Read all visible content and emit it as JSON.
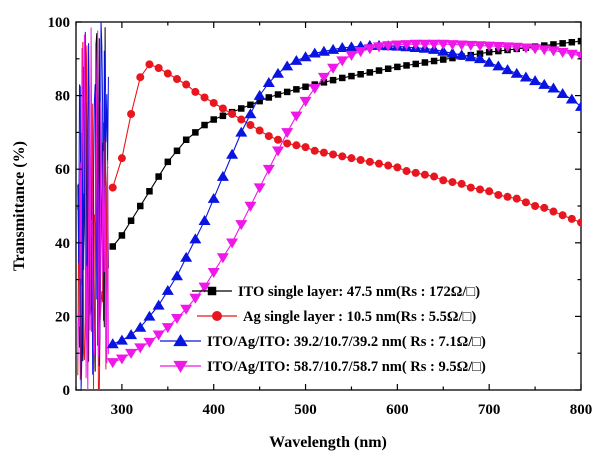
{
  "chart_data": {
    "type": "line",
    "xlabel": "Wavelength (nm)",
    "ylabel": "Transmittance (%)",
    "xlim": [
      250,
      800
    ],
    "ylim": [
      0,
      100
    ],
    "xticks": [
      300,
      400,
      500,
      600,
      700,
      800
    ],
    "yticks": [
      0,
      20,
      40,
      60,
      80,
      100
    ],
    "grid": false,
    "legend_position": "bottom-right",
    "series": [
      {
        "name": "ITO single layer: 47.5 nm(Rs : 172Ω/□)",
        "color": "#000000",
        "marker": "square",
        "x": [
          290,
          300,
          310,
          320,
          330,
          340,
          350,
          360,
          370,
          380,
          390,
          400,
          410,
          420,
          430,
          440,
          450,
          460,
          470,
          480,
          490,
          500,
          510,
          520,
          530,
          540,
          550,
          560,
          570,
          580,
          590,
          600,
          610,
          620,
          630,
          640,
          650,
          660,
          670,
          680,
          690,
          700,
          710,
          720,
          730,
          740,
          750,
          760,
          770,
          780,
          790,
          800
        ],
        "y": [
          39,
          42,
          46,
          50,
          54,
          58,
          62,
          65,
          68,
          70,
          72,
          73.5,
          74.5,
          75.5,
          76.5,
          77.5,
          78.5,
          79.5,
          80.3,
          81,
          81.7,
          82.4,
          83,
          83.6,
          84.2,
          84.8,
          85.3,
          85.8,
          86.3,
          86.8,
          87.3,
          87.8,
          88.2,
          88.6,
          89,
          89.4,
          89.8,
          90.2,
          90.6,
          91,
          91.4,
          91.8,
          92.1,
          92.4,
          92.7,
          93,
          93.3,
          93.6,
          93.9,
          94.2,
          94.5,
          94.8
        ]
      },
      {
        "name": "Ag single layer  :  10.5 nm(Rs : 5.5Ω/□)",
        "color": "#e8161e",
        "marker": "circle",
        "x": [
          290,
          300,
          310,
          320,
          330,
          340,
          350,
          360,
          370,
          380,
          390,
          400,
          410,
          420,
          430,
          440,
          450,
          460,
          470,
          480,
          490,
          500,
          510,
          520,
          530,
          540,
          550,
          560,
          570,
          580,
          590,
          600,
          610,
          620,
          630,
          640,
          650,
          660,
          670,
          680,
          690,
          700,
          710,
          720,
          730,
          740,
          750,
          760,
          770,
          780,
          790,
          800
        ],
        "y": [
          55,
          63,
          75,
          85,
          88.5,
          87.5,
          86,
          84.5,
          83,
          81,
          79.5,
          78,
          76.5,
          75,
          73.5,
          72,
          70.5,
          69,
          68,
          67,
          66.5,
          66,
          65,
          64.5,
          64,
          63.5,
          63,
          62.5,
          62,
          61.5,
          61,
          60.5,
          59.5,
          59,
          58.5,
          58,
          57,
          56.5,
          56,
          55,
          54.5,
          54,
          53,
          52.5,
          52,
          51,
          50,
          49.5,
          48.5,
          47.5,
          46.5,
          45.5
        ]
      },
      {
        "name": "ITO/Ag/ITO: 39.2/10.7/39.2 nm( Rs : 7.1Ω/□)",
        "color": "#0a14e0",
        "marker": "triangle-up",
        "x": [
          290,
          300,
          310,
          320,
          330,
          340,
          350,
          360,
          370,
          380,
          390,
          400,
          410,
          420,
          430,
          440,
          450,
          460,
          470,
          480,
          490,
          500,
          510,
          520,
          530,
          540,
          550,
          560,
          570,
          580,
          590,
          600,
          610,
          620,
          630,
          640,
          650,
          660,
          670,
          680,
          690,
          700,
          710,
          720,
          730,
          740,
          750,
          760,
          770,
          780,
          790,
          800
        ],
        "y": [
          12.5,
          13.5,
          15,
          17,
          20,
          23,
          27,
          31,
          36,
          41,
          46,
          52,
          58,
          64,
          70,
          75,
          80,
          83.5,
          86,
          88,
          89.5,
          90.5,
          91.5,
          92,
          92.5,
          93,
          93.2,
          93.4,
          93.6,
          93.6,
          93.5,
          93.4,
          93.2,
          93,
          92.8,
          92.5,
          92,
          91.5,
          91,
          90.5,
          90,
          89,
          88,
          87,
          86,
          85,
          84,
          83,
          82,
          80.5,
          79,
          77
        ]
      },
      {
        "name": "ITO/Ag/ITO: 58.7/10.7/58.7 nm( Rs : 9.5Ω/□)",
        "color": "#f018e8",
        "marker": "triangle-down",
        "x": [
          290,
          300,
          310,
          320,
          330,
          340,
          350,
          360,
          370,
          380,
          390,
          400,
          410,
          420,
          430,
          440,
          450,
          460,
          470,
          480,
          490,
          500,
          510,
          520,
          530,
          540,
          550,
          560,
          570,
          580,
          590,
          600,
          610,
          620,
          630,
          640,
          650,
          660,
          670,
          680,
          690,
          700,
          710,
          720,
          730,
          740,
          750,
          760,
          770,
          780,
          790,
          800
        ],
        "y": [
          7.5,
          8.5,
          10,
          11.5,
          13,
          15,
          17,
          19.5,
          22,
          25,
          28,
          32,
          36,
          40,
          45,
          50,
          55,
          60,
          65,
          70,
          74.5,
          78.5,
          82,
          85,
          87.5,
          89.5,
          91,
          92,
          92.8,
          93.3,
          93.6,
          93.8,
          93.9,
          94,
          94,
          94,
          94,
          93.9,
          93.8,
          93.7,
          93.6,
          93.5,
          93.4,
          93.3,
          93.2,
          93,
          92.8,
          92.5,
          92.2,
          91.8,
          91.3,
          90.8
        ]
      }
    ]
  }
}
